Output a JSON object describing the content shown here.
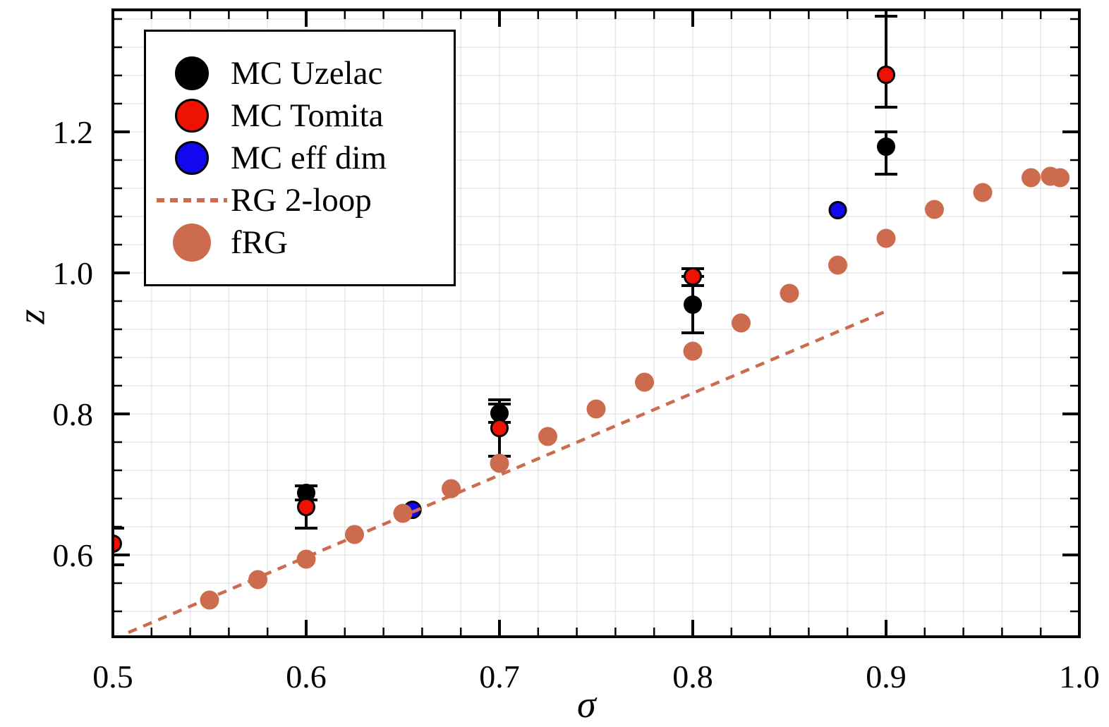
{
  "chart_data": {
    "type": "scatter",
    "title": "",
    "xlabel": "σ",
    "ylabel": "z",
    "xlim": [
      0.5,
      1.0
    ],
    "ylim": [
      0.484,
      1.373
    ],
    "x_major_ticks": [
      0.5,
      0.6,
      0.7,
      0.8,
      0.9,
      1.0
    ],
    "y_major_ticks": [
      0.6,
      0.8,
      1.0,
      1.2
    ],
    "x_minor_step": 0.02,
    "y_minor_step": 0.04,
    "grid": "minor",
    "grid_color": "#e8e8e8",
    "legend_position": "upper-left",
    "series": [
      {
        "name": "MC Uzelac",
        "kind": "scatter",
        "color": "#000000",
        "edge_color": "#000000",
        "points": [
          {
            "x": 0.6,
            "y": 0.688,
            "err_plus": 0.01,
            "err_minus": 0.01
          },
          {
            "x": 0.7,
            "y": 0.801,
            "err_plus": 0.013,
            "err_minus": 0.013
          },
          {
            "x": 0.8,
            "y": 0.955,
            "err_plus": 0.04,
            "err_minus": 0.04
          },
          {
            "x": 0.9,
            "y": 1.179,
            "err_plus": 0.021,
            "err_minus": 0.039
          }
        ]
      },
      {
        "name": "MC Tomita",
        "kind": "scatter",
        "color": "#ee1205",
        "edge_color": "#000000",
        "points": [
          {
            "x": 0.5,
            "y": 0.616,
            "err_plus": 0.022,
            "err_minus": 0.03
          },
          {
            "x": 0.6,
            "y": 0.668,
            "err_plus": 0.01,
            "err_minus": 0.03
          },
          {
            "x": 0.7,
            "y": 0.78,
            "err_plus": 0.04,
            "err_minus": 0.04
          },
          {
            "x": 0.8,
            "y": 0.995,
            "err_plus": 0.011,
            "err_minus": 0.013
          },
          {
            "x": 0.9,
            "y": 1.281,
            "err_plus": 0.083,
            "err_minus": 0.046
          }
        ]
      },
      {
        "name": "MC eff dim",
        "kind": "scatter",
        "color": "#1208ee",
        "edge_color": "#000000",
        "points": [
          {
            "x": 0.655,
            "y": 0.664
          },
          {
            "x": 0.875,
            "y": 1.089
          }
        ]
      },
      {
        "name": "RG 2-loop",
        "kind": "dashed-line",
        "color": "#cc6b4d",
        "points": [
          {
            "x": 0.508,
            "y": 0.49
          },
          {
            "x": 0.902,
            "y": 0.948
          }
        ]
      },
      {
        "name": "fRG",
        "kind": "scatter",
        "color": "#cc6b4d",
        "edge_color": "none",
        "points": [
          {
            "x": 0.55,
            "y": 0.536
          },
          {
            "x": 0.575,
            "y": 0.565
          },
          {
            "x": 0.6,
            "y": 0.594
          },
          {
            "x": 0.625,
            "y": 0.629
          },
          {
            "x": 0.65,
            "y": 0.659
          },
          {
            "x": 0.675,
            "y": 0.694
          },
          {
            "x": 0.7,
            "y": 0.73
          },
          {
            "x": 0.725,
            "y": 0.768
          },
          {
            "x": 0.75,
            "y": 0.807
          },
          {
            "x": 0.775,
            "y": 0.845
          },
          {
            "x": 0.8,
            "y": 0.889
          },
          {
            "x": 0.825,
            "y": 0.929
          },
          {
            "x": 0.85,
            "y": 0.971
          },
          {
            "x": 0.875,
            "y": 1.011
          },
          {
            "x": 0.9,
            "y": 1.049
          },
          {
            "x": 0.925,
            "y": 1.09
          },
          {
            "x": 0.95,
            "y": 1.114
          },
          {
            "x": 0.975,
            "y": 1.135
          },
          {
            "x": 0.985,
            "y": 1.137
          },
          {
            "x": 0.99,
            "y": 1.135
          }
        ]
      }
    ]
  },
  "legend": {
    "items": [
      {
        "label": "MC Uzelac",
        "marker": "circle",
        "fill": "#000000",
        "edge": "#000000"
      },
      {
        "label": "MC Tomita",
        "marker": "circle",
        "fill": "#ee1205",
        "edge": "#000000"
      },
      {
        "label": "MC eff dim",
        "marker": "circle",
        "fill": "#1208ee",
        "edge": "#000000"
      },
      {
        "label": "RG 2-loop",
        "marker": "dashed-line",
        "fill": "#cc6b4d",
        "edge": "none"
      },
      {
        "label": "fRG",
        "marker": "big-circle",
        "fill": "#cc6b4d",
        "edge": "none"
      }
    ]
  }
}
